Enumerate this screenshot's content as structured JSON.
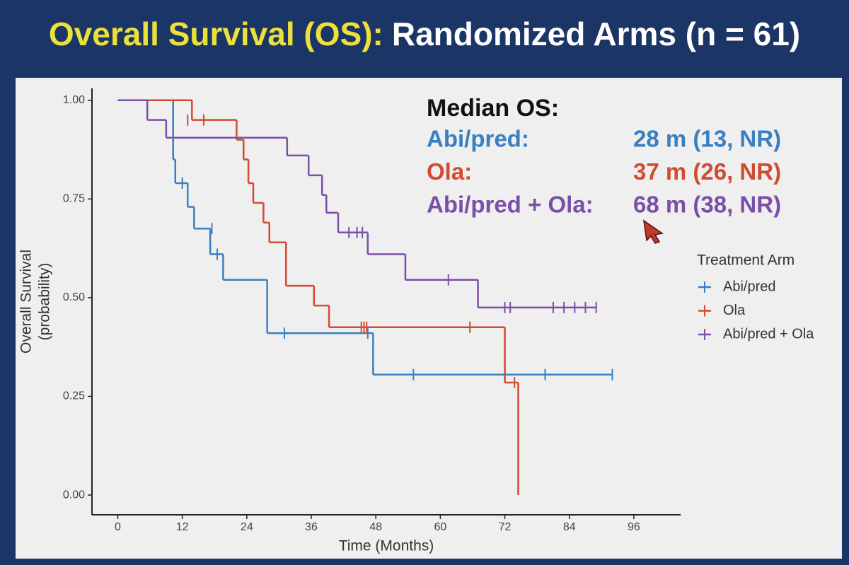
{
  "chart_data": {
    "type": "step",
    "title_lead": "Overall Survival (OS):",
    "title": "Randomized Arms (n = 61)",
    "xlabel": "Time (Months)",
    "ylabel": [
      "Overall Survival",
      "(probability)"
    ],
    "xlim": [
      -4.8,
      104.7
    ],
    "ylim": [
      -0.05,
      1.03
    ],
    "xticks": [
      0,
      12,
      24,
      36,
      48,
      60,
      72,
      84,
      96
    ],
    "yticks": [
      {
        "value": 0,
        "label": "0.00"
      },
      {
        "value": 0.25,
        "label": "0.25"
      },
      {
        "value": 0.5,
        "label": "0.50"
      },
      {
        "value": 0.75,
        "label": "0.75"
      },
      {
        "value": 1,
        "label": "1.00"
      }
    ],
    "legend_title": "Treatment Arm",
    "legend_position": "right",
    "series": [
      {
        "name": "Abi/pred",
        "color": "#3a7fc0",
        "x": [
          0,
          10.3,
          10.7,
          13,
          14.2,
          17.2,
          19.6,
          27.8,
          47.5,
          92
        ],
        "values": [
          1,
          0.85,
          0.79,
          0.73,
          0.675,
          0.61,
          0.545,
          0.41,
          0.305,
          0.305
        ],
        "censor_x": [
          12,
          17.5,
          18.5,
          31,
          46.5,
          55,
          79.5,
          92
        ],
        "censor_values": [
          0.79,
          0.675,
          0.61,
          0.41,
          0.41,
          0.305,
          0.305,
          0.305
        ]
      },
      {
        "name": "Ola",
        "color": "#d24a30",
        "x": [
          0,
          13.8,
          22.1,
          23.4,
          24.3,
          25.2,
          27.1,
          28.2,
          31.3,
          36.5,
          39.3,
          72,
          74.5
        ],
        "values": [
          1,
          0.95,
          0.9,
          0.85,
          0.79,
          0.74,
          0.69,
          0.64,
          0.53,
          0.48,
          0.425,
          0.285,
          0
        ],
        "censor_x": [
          13,
          16,
          45.3,
          45.8,
          46.3,
          65.5,
          73.8
        ],
        "censor_values": [
          0.95,
          0.95,
          0.425,
          0.425,
          0.425,
          0.425,
          0.285
        ]
      },
      {
        "name": "Abi/pred + Ola",
        "color": "#7b4fa8",
        "x": [
          0,
          5.5,
          9,
          31.5,
          35.5,
          38,
          38.8,
          41,
          46.5,
          53.5,
          67,
          89
        ],
        "values": [
          1,
          0.95,
          0.905,
          0.86,
          0.81,
          0.76,
          0.715,
          0.665,
          0.61,
          0.545,
          0.475,
          0.475
        ],
        "censor_x": [
          43,
          44.5,
          45.5,
          61.5,
          72,
          73,
          81,
          83,
          85,
          87,
          89
        ],
        "censor_values": [
          0.665,
          0.665,
          0.665,
          0.545,
          0.475,
          0.475,
          0.475,
          0.475,
          0.475,
          0.475,
          0.475
        ]
      }
    ],
    "annotation": {
      "title": "Median OS:",
      "rows": [
        {
          "label": "Abi/pred:",
          "value": "28 m (13, NR)"
        },
        {
          "label": "Ola:",
          "value": "37 m (26, NR)"
        },
        {
          "label": "Abi/pred + Ola:",
          "value": "68 m (38, NR)"
        }
      ]
    }
  }
}
